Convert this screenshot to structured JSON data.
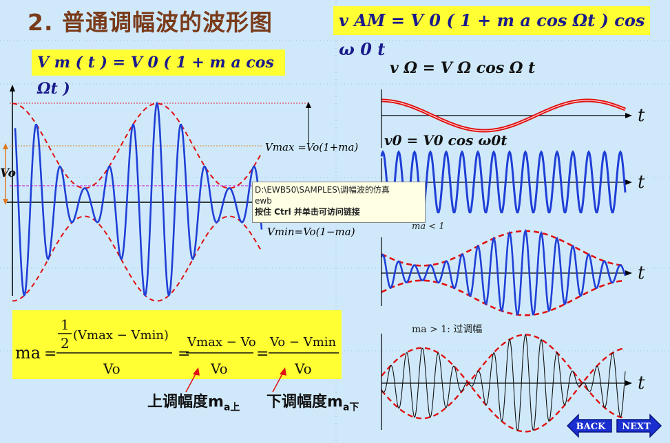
{
  "slide": {
    "title": "2.  普通调幅波的波形图",
    "formula_vam": "v AM  = V 0 ( 1 + m a cos  Ωt ) cos  ω 0 t",
    "formula_vm": "V m ( t ) = V 0 ( 1 + m a cos  Ωt )",
    "labels": {
      "vmax": "Vmax =Vo(1+ma)",
      "vmin": "Vmin=Vo(1−ma)",
      "v0_axis": "Vo",
      "v_omega": "v Ω  =  V Ω  cos  Ω t",
      "v_zero": "v0  = V0 cos  ω0t",
      "ma_lt_1": "ma < 1",
      "ma_gt_1": "ma > 1: 过调幅",
      "t_axis": "t"
    },
    "ma_formula": {
      "lhs": "ma",
      "half": "1",
      "two": "2",
      "part1": "(Vmax − Vmin)",
      "part2_num": "Vmax − Vo",
      "part3_num": "Vo − Vmin",
      "denominator": "Vo",
      "eq": "="
    },
    "upper_label": "上调幅度m",
    "upper_sub": "a上",
    "lower_label": "下调幅度m",
    "lower_sub": "a下",
    "tooltip": {
      "line1": "D:\\EWB50\\SAMPLES\\调幅波的仿真",
      "line2": "ewb",
      "line3": "按住 Ctrl 并单击可访问链接"
    },
    "nav": {
      "back": "BACK",
      "next": "NEXT"
    },
    "colors": {
      "carrier": "#1f3fd6",
      "envelope": "#e01010",
      "title": "#7a3b1a",
      "highlight": "#ffff33"
    }
  }
}
